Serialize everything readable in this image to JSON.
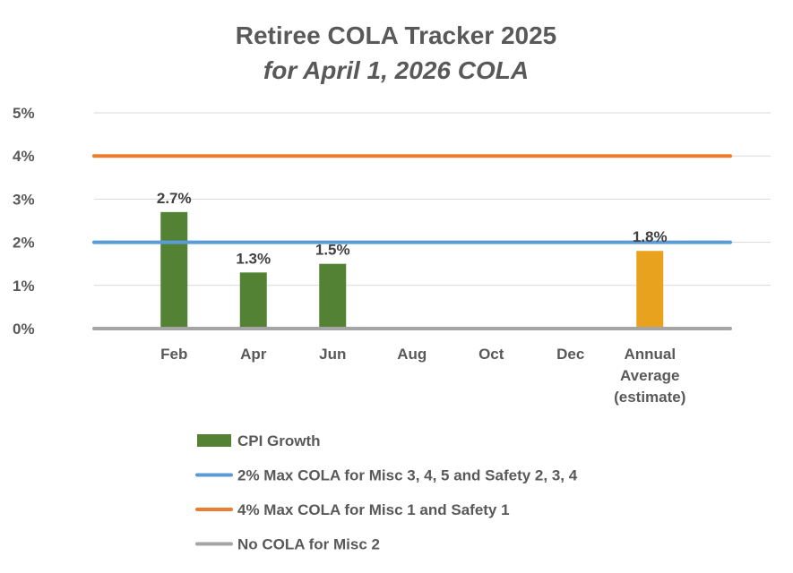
{
  "chart_data": {
    "type": "bar",
    "title": "Retiree COLA Tracker 2025",
    "subtitle": "for April 1, 2026 COLA",
    "categories": [
      "Feb",
      "Apr",
      "Jun",
      "Aug",
      "Oct",
      "Dec",
      "Annual Average (estimate)"
    ],
    "category_lines": [
      [
        "Feb"
      ],
      [
        "Apr"
      ],
      [
        "Jun"
      ],
      [
        "Aug"
      ],
      [
        "Oct"
      ],
      [
        "Dec"
      ],
      [
        "Annual",
        "Average",
        "(estimate)"
      ]
    ],
    "series": [
      {
        "name": "CPI Growth",
        "kind": "bar",
        "color": "#548235",
        "highlight_color": "#E8A21E",
        "highlight_index": 6,
        "values": [
          2.7,
          1.3,
          1.5,
          null,
          null,
          null,
          1.8
        ],
        "labels": [
          "2.7%",
          "1.3%",
          "1.5%",
          "",
          "",
          "",
          "1.8%"
        ]
      },
      {
        "name": "2% Max COLA for Misc 3, 4, 5 and Safety 2, 3, 4",
        "kind": "line",
        "color": "#5B9BD5",
        "value": 2
      },
      {
        "name": "4% Max COLA for Misc 1 and Safety 1",
        "kind": "line",
        "color": "#ED7D31",
        "value": 4
      },
      {
        "name": "No COLA for Misc 2",
        "kind": "line",
        "color": "#A5A5A5",
        "value": 0
      }
    ],
    "ylim": [
      0,
      5
    ],
    "yticks": [
      "0%",
      "1%",
      "2%",
      "3%",
      "4%",
      "5%"
    ],
    "xlabel": "",
    "ylabel": "",
    "grid": true,
    "legend_position": "bottom"
  }
}
